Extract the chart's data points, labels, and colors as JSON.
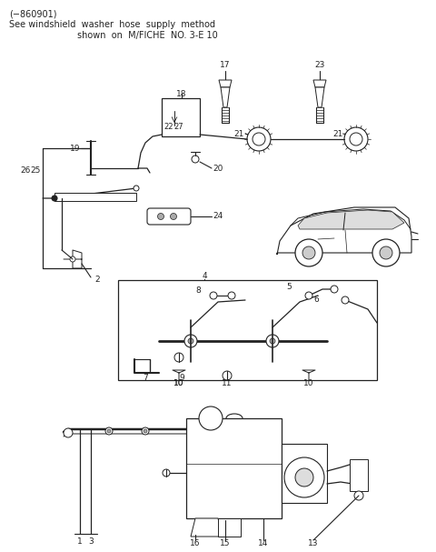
{
  "title_line1": "(−860901)",
  "title_line2": "See windshield  washer  hose  supply  method",
  "title_line3": "                        shown  on  M/FICHE  NO. 3-E 10",
  "bg_color": "#ffffff",
  "line_color": "#222222",
  "text_color": "#222222",
  "fig_width": 4.8,
  "fig_height": 6.07,
  "dpi": 100
}
